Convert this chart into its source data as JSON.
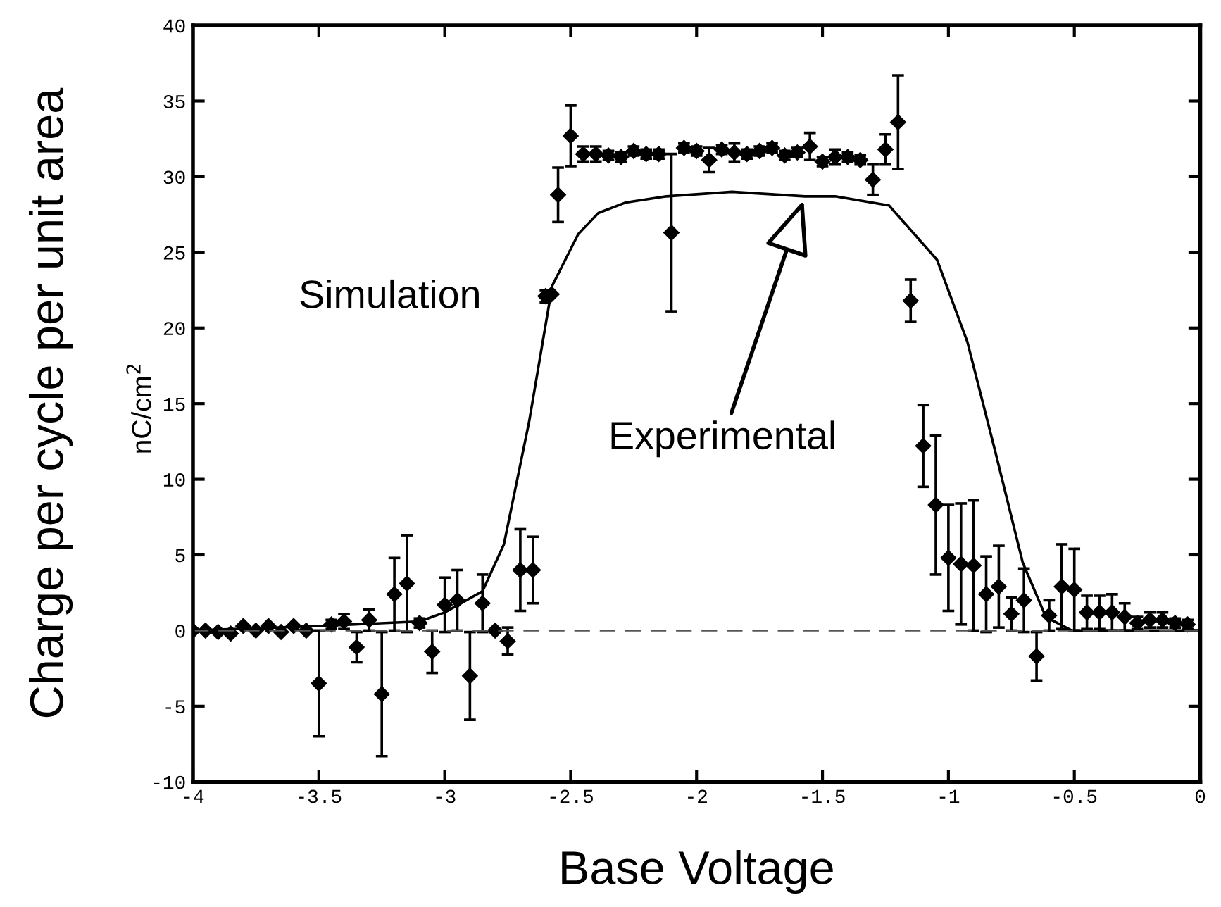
{
  "chart_data": {
    "type": "scatter",
    "xlabel": "Base Voltage",
    "ylabel": "Charge per cycle per unit area",
    "xlim": [
      -4,
      0
    ],
    "xticks": [
      -4,
      -3.5,
      -3,
      -2.5,
      -2,
      -1.5,
      -1,
      -0.5,
      0
    ],
    "ylim": [
      -10,
      40
    ],
    "yticks": [
      -10,
      -5,
      0,
      5,
      10,
      15,
      20,
      25,
      30,
      35,
      40
    ],
    "grid": false,
    "legend": "left",
    "marker": "diamond",
    "series": [
      {
        "name": "Simulation",
        "color": "#000000",
        "x": [
          -4,
          -3.95,
          -3.9,
          -3.85,
          -3.8,
          -3.75,
          -3.7,
          -3.65,
          -3.6,
          -3.55,
          -3.5,
          -3.45,
          -3.4,
          -3.35,
          -3.3,
          -3.25,
          -3.2,
          -3.15,
          -3.1,
          -3.05,
          -3.0,
          -2.95,
          -2.9,
          -2.85,
          -2.8,
          -2.75,
          -2.7,
          -2.65,
          -2.6,
          -2.55,
          -2.5,
          -2.45,
          -2.4,
          -2.35,
          -2.3,
          -2.25,
          -2.2,
          -2.15,
          -2.1,
          -2.05,
          -2.0,
          -1.95,
          -1.9,
          -1.85,
          -1.8,
          -1.75,
          -1.7,
          -1.65,
          -1.6,
          -1.55,
          -1.5,
          -1.45,
          -1.4,
          -1.35,
          -1.3,
          -1.25,
          -1.2,
          -1.15,
          -1.1,
          -1.05,
          -1.0,
          -0.95,
          -0.9,
          -0.85,
          -0.8,
          -0.75,
          -0.7,
          -0.65,
          -0.6,
          -0.55,
          -0.5,
          -0.45,
          -0.4,
          -0.35,
          -0.3,
          -0.25,
          -0.2,
          -0.15,
          -0.1,
          -0.05
        ],
        "values": [
          0,
          0,
          -0.1,
          -0.2,
          0.3,
          0,
          0.3,
          -0.1,
          0.3,
          0,
          -3.5,
          0.4,
          0.6,
          -1.1,
          0.7,
          -4.2,
          2.4,
          3.1,
          0.5,
          -1.4,
          1.7,
          2.0,
          -3.0,
          1.8,
          0,
          -0.7,
          4.0,
          4.0,
          22.1,
          28.8,
          32.7,
          31.5,
          31.5,
          31.4,
          31.3,
          31.7,
          31.5,
          31.5,
          26.3,
          31.9,
          31.7,
          31.1,
          31.8,
          31.6,
          31.5,
          31.7,
          31.9,
          31.4,
          31.6,
          32.0,
          31.0,
          31.3,
          31.3,
          31.1,
          29.8,
          31.8,
          33.6,
          21.8,
          12.2,
          8.3,
          4.8,
          4.4,
          4.3,
          2.4,
          2.9,
          1.1,
          2.0,
          -1.7,
          1.0,
          2.9,
          2.7,
          1.2,
          1.2,
          1.2,
          0.9,
          0.5,
          0.7,
          0.7,
          0.5,
          0.4
        ],
        "errors": [
          null,
          null,
          null,
          null,
          null,
          null,
          null,
          null,
          null,
          null,
          3.5,
          0.3,
          0.5,
          1.0,
          0.7,
          4.1,
          2.4,
          3.2,
          0.3,
          1.4,
          1.8,
          2.0,
          2.9,
          1.9,
          null,
          0.9,
          2.7,
          2.2,
          0.4,
          1.8,
          2.0,
          0.5,
          0.5,
          0.3,
          0.3,
          0.3,
          0.3,
          0.3,
          5.2,
          0.3,
          0.3,
          0.8,
          0.3,
          0.6,
          0.3,
          0.3,
          0.3,
          0.3,
          0.3,
          0.9,
          0.3,
          0.5,
          0.3,
          0.3,
          1.0,
          1.0,
          3.1,
          1.4,
          2.7,
          4.6,
          3.5,
          4.0,
          4.3,
          2.5,
          2.7,
          1.1,
          2.1,
          1.6,
          1.0,
          2.8,
          2.7,
          1.1,
          1.1,
          1.2,
          0.9,
          0.4,
          0.5,
          0.5,
          0.3,
          0.3
        ]
      },
      {
        "name": "Experimental",
        "type": "line",
        "color": "#000000",
        "marker": "none",
        "line_style": "solid",
        "x": [
          -4,
          -3.5,
          -3.1,
          -3.0,
          -2.85,
          -2.765,
          -2.665,
          -2.573,
          -2.47,
          -2.39,
          -2.28,
          -2.12,
          -1.86,
          -1.57,
          -1.45,
          -1.236,
          -1.045,
          -0.925,
          -0.815,
          -0.705,
          -0.613,
          -0.51,
          0
        ],
        "values": [
          0,
          0.3,
          0.6,
          1.2,
          2.6,
          5.7,
          13.8,
          22.8,
          26.2,
          27.6,
          28.3,
          28.7,
          29.0,
          28.7,
          28.7,
          28.1,
          24.5,
          19.1,
          11.9,
          4.5,
          0.9,
          0,
          0
        ]
      }
    ],
    "ref_lines": [
      {
        "axis": "y",
        "value": 0,
        "line_style": "dashed",
        "color": "#555555"
      }
    ],
    "annotations": [
      "nC/cm$^{2}$"
    ]
  }
}
